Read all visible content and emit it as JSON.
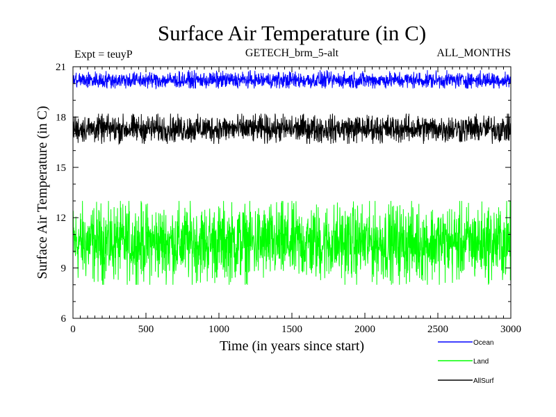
{
  "chart_data": {
    "type": "line",
    "title": "Surface Air Temperature (in C)",
    "annotations": {
      "left": "Expt = teuyP",
      "center": "GETECH_brm_5-alt",
      "right": "ALL_MONTHS"
    },
    "xlabel": "Time (in years since start)",
    "ylabel": "Surface Air Temperature (in C)",
    "xlim": [
      0,
      3000
    ],
    "ylim": [
      6,
      21
    ],
    "xticks": [
      0,
      500,
      1000,
      1500,
      2000,
      2500,
      3000
    ],
    "yticks": [
      6,
      9,
      12,
      15,
      18,
      21
    ],
    "grid": false,
    "legend_position": "bottom-right, below plot",
    "series": [
      {
        "name": "Ocean",
        "color": "#0000ff",
        "mean": 20.2,
        "min": 19.7,
        "max": 20.8
      },
      {
        "name": "Land",
        "color": "#00ff00",
        "mean": 10.5,
        "min": 8.0,
        "max": 13.0
      },
      {
        "name": "AllSurf",
        "color": "#000000",
        "mean": 17.3,
        "min": 16.4,
        "max": 18.2
      }
    ]
  }
}
